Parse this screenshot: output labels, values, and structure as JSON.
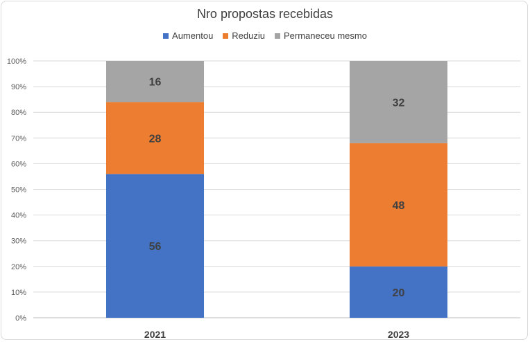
{
  "chart_data": {
    "type": "bar",
    "stacked": "percent",
    "title": "Nro propostas recebidas",
    "categories": [
      "2021",
      "2023"
    ],
    "series": [
      {
        "name": "Aumentou",
        "values": [
          56,
          20
        ],
        "color": "#4472c4"
      },
      {
        "name": "Reduziu",
        "values": [
          28,
          48
        ],
        "color": "#ed7d31"
      },
      {
        "name": "Permaneceu mesmo",
        "values": [
          16,
          32
        ],
        "color": "#a5a5a5"
      }
    ],
    "yticks": [
      "0%",
      "10%",
      "20%",
      "30%",
      "40%",
      "50%",
      "60%",
      "70%",
      "80%",
      "90%",
      "100%"
    ],
    "ylim": [
      0,
      100
    ],
    "grid": true,
    "legend": "top"
  }
}
